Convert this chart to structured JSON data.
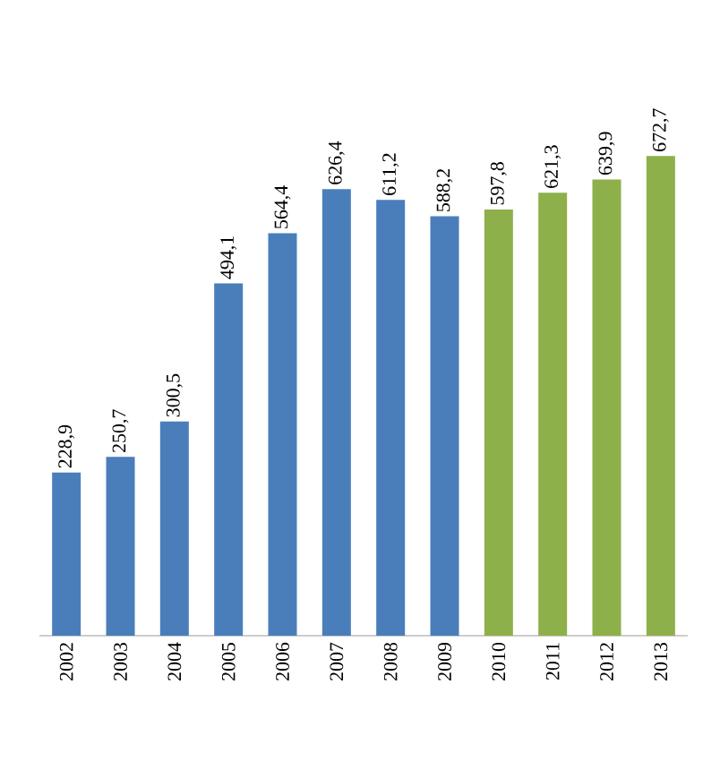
{
  "chart_data": {
    "type": "bar",
    "categories": [
      "2002",
      "2003",
      "2004",
      "2005",
      "2006",
      "2007",
      "2008",
      "2009",
      "2010",
      "2011",
      "2012",
      "2013"
    ],
    "values": [
      228.9,
      250.7,
      300.5,
      494.1,
      564.4,
      626.4,
      611.2,
      588.2,
      597.8,
      621.3,
      639.9,
      672.7
    ],
    "value_labels": [
      "228,9",
      "250,7",
      "300,5",
      "494,1",
      "564,4",
      "626,4",
      "611,2",
      "588,2",
      "597,8",
      "621,3",
      "639,9",
      "672,7"
    ],
    "colors": [
      "#4a7ebb",
      "#4a7ebb",
      "#4a7ebb",
      "#4a7ebb",
      "#4a7ebb",
      "#4a7ebb",
      "#4a7ebb",
      "#4a7ebb",
      "#8db04a",
      "#8db04a",
      "#8db04a",
      "#8db04a"
    ]
  }
}
